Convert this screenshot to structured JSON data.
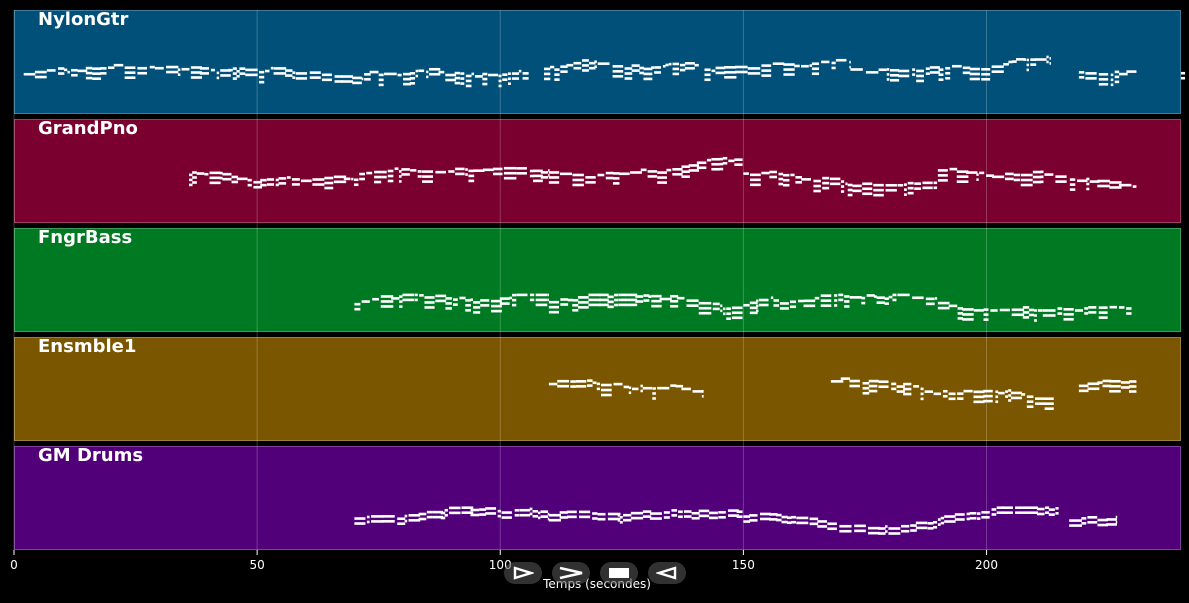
{
  "chart_data": {
    "type": "piano-roll",
    "xlabel": "Temps (secondes)",
    "xlim": [
      0,
      240
    ],
    "xticks": [
      0,
      50,
      100,
      150,
      200
    ],
    "grid": true,
    "tracks": [
      {
        "name": "NylonGtr",
        "color": "#00507a",
        "segments": [
          [
            2,
            72
          ],
          [
            72,
            106
          ],
          [
            109,
            141
          ],
          [
            142,
            172
          ],
          [
            172,
            213
          ],
          [
            219,
            231
          ],
          [
            240,
            241
          ]
        ],
        "pitch": [
          0.45,
          0.75
        ]
      },
      {
        "name": "GrandPno",
        "color": "#7a0030",
        "segments": [
          [
            36,
            71
          ],
          [
            71,
            110
          ],
          [
            110,
            150
          ],
          [
            150,
            190
          ],
          [
            190,
            231
          ]
        ],
        "pitch": [
          0.35,
          0.7
        ]
      },
      {
        "name": "FngrBass",
        "color": "#007a22",
        "segments": [
          [
            70,
            110
          ],
          [
            110,
            150
          ],
          [
            150,
            190
          ],
          [
            190,
            230
          ]
        ],
        "pitch": [
          0.65,
          0.8
        ]
      },
      {
        "name": "Ensmble1",
        "color": "#7a5600",
        "segments": [
          [
            110,
            142
          ],
          [
            168,
            214
          ],
          [
            219,
            231
          ]
        ],
        "pitch": [
          0.3,
          0.6
        ]
      },
      {
        "name": "GM Drums",
        "color": "#52007a",
        "segments": [
          [
            70,
            110
          ],
          [
            110,
            150
          ],
          [
            150,
            190
          ],
          [
            190,
            215
          ],
          [
            217,
            227
          ]
        ],
        "pitch": [
          0.6,
          0.8
        ]
      }
    ]
  },
  "controls": {
    "btn1_icon": "play-outline-icon",
    "btn2_icon": "fast-forward-icon",
    "btn3_icon": "stop-icon",
    "btn4_icon": "rewind-icon"
  }
}
